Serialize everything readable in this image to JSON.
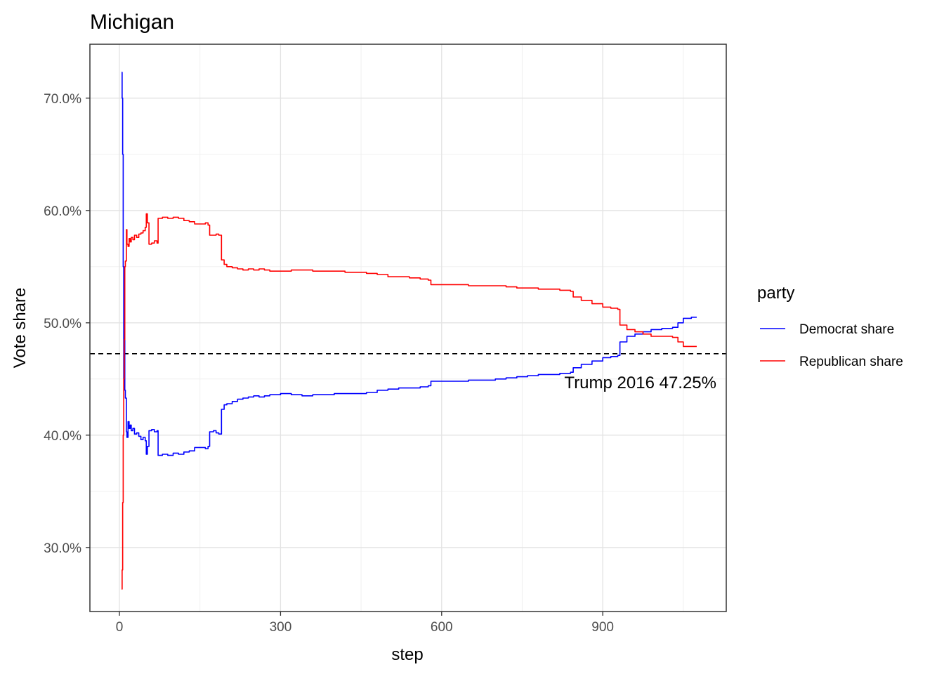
{
  "chart_data": {
    "type": "line",
    "title": "Michigan",
    "xlabel": "step",
    "ylabel": "Vote share",
    "xlim": [
      -55,
      1130
    ],
    "ylim": [
      24.3,
      74.8
    ],
    "x_ticks": [
      0,
      300,
      600,
      900
    ],
    "x_minor_ticks": [
      150,
      450,
      750,
      1050
    ],
    "y_ticks": [
      30,
      40,
      50,
      60,
      70
    ],
    "y_minor_ticks": [
      35,
      45,
      55,
      65
    ],
    "y_tick_format": "percent_1dp",
    "grid": true,
    "legend": {
      "title": "party",
      "position": "right"
    },
    "reference_line": {
      "y": 47.25,
      "label": "Trump 2016 47.25%",
      "style": "dashed",
      "color": "#000000"
    },
    "series": [
      {
        "name": "Democrat share",
        "color": "#0000ff",
        "points": [
          [
            4,
            72.3
          ],
          [
            5,
            70.0
          ],
          [
            6,
            65.0
          ],
          [
            7,
            55.0
          ],
          [
            8,
            45.0
          ],
          [
            9,
            49.2
          ],
          [
            10,
            44.0
          ],
          [
            11,
            43.3
          ],
          [
            13,
            40.3
          ],
          [
            14,
            39.8
          ],
          [
            16,
            41.2
          ],
          [
            18,
            40.6
          ],
          [
            20,
            40.9
          ],
          [
            22,
            40.4
          ],
          [
            25,
            40.6
          ],
          [
            28,
            40.1
          ],
          [
            32,
            40.2
          ],
          [
            36,
            39.9
          ],
          [
            40,
            39.6
          ],
          [
            44,
            39.8
          ],
          [
            48,
            39.5
          ],
          [
            50,
            38.3
          ],
          [
            52,
            39.0
          ],
          [
            55,
            40.4
          ],
          [
            60,
            40.5
          ],
          [
            65,
            40.3
          ],
          [
            70,
            40.4
          ],
          [
            72,
            38.2
          ],
          [
            80,
            38.3
          ],
          [
            90,
            38.2
          ],
          [
            100,
            38.4
          ],
          [
            110,
            38.3
          ],
          [
            120,
            38.5
          ],
          [
            130,
            38.6
          ],
          [
            140,
            38.9
          ],
          [
            150,
            38.9
          ],
          [
            160,
            38.8
          ],
          [
            165,
            39.0
          ],
          [
            168,
            40.3
          ],
          [
            175,
            40.4
          ],
          [
            180,
            40.2
          ],
          [
            185,
            40.1
          ],
          [
            190,
            42.3
          ],
          [
            195,
            42.7
          ],
          [
            200,
            42.8
          ],
          [
            210,
            43.0
          ],
          [
            220,
            43.2
          ],
          [
            230,
            43.3
          ],
          [
            240,
            43.4
          ],
          [
            250,
            43.5
          ],
          [
            260,
            43.4
          ],
          [
            270,
            43.5
          ],
          [
            280,
            43.6
          ],
          [
            300,
            43.7
          ],
          [
            320,
            43.6
          ],
          [
            340,
            43.5
          ],
          [
            360,
            43.6
          ],
          [
            380,
            43.6
          ],
          [
            400,
            43.7
          ],
          [
            420,
            43.7
          ],
          [
            440,
            43.7
          ],
          [
            460,
            43.8
          ],
          [
            480,
            44.0
          ],
          [
            500,
            44.1
          ],
          [
            520,
            44.2
          ],
          [
            540,
            44.2
          ],
          [
            560,
            44.3
          ],
          [
            575,
            44.4
          ],
          [
            580,
            44.8
          ],
          [
            600,
            44.8
          ],
          [
            630,
            44.8
          ],
          [
            650,
            44.9
          ],
          [
            680,
            44.9
          ],
          [
            700,
            45.0
          ],
          [
            720,
            45.1
          ],
          [
            740,
            45.2
          ],
          [
            760,
            45.3
          ],
          [
            780,
            45.4
          ],
          [
            800,
            45.4
          ],
          [
            820,
            45.5
          ],
          [
            840,
            45.6
          ],
          [
            845,
            46.0
          ],
          [
            860,
            46.3
          ],
          [
            880,
            46.6
          ],
          [
            900,
            46.9
          ],
          [
            915,
            47.0
          ],
          [
            928,
            47.1
          ],
          [
            932,
            48.3
          ],
          [
            945,
            48.8
          ],
          [
            960,
            49.0
          ],
          [
            975,
            49.2
          ],
          [
            990,
            49.4
          ],
          [
            1010,
            49.5
          ],
          [
            1030,
            49.6
          ],
          [
            1040,
            50.0
          ],
          [
            1050,
            50.4
          ],
          [
            1065,
            50.5
          ],
          [
            1075,
            50.5
          ]
        ]
      },
      {
        "name": "Republican share",
        "color": "#ff0000",
        "points": [
          [
            4,
            26.3
          ],
          [
            5,
            28.0
          ],
          [
            6,
            34.0
          ],
          [
            7,
            40.0
          ],
          [
            8,
            45.0
          ],
          [
            9,
            48.5
          ],
          [
            10,
            55.0
          ],
          [
            11,
            55.5
          ],
          [
            13,
            58.3
          ],
          [
            14,
            57.0
          ],
          [
            16,
            56.8
          ],
          [
            18,
            57.5
          ],
          [
            20,
            57.2
          ],
          [
            22,
            57.6
          ],
          [
            25,
            57.4
          ],
          [
            28,
            57.8
          ],
          [
            32,
            57.6
          ],
          [
            36,
            57.9
          ],
          [
            40,
            58.0
          ],
          [
            44,
            58.2
          ],
          [
            48,
            58.5
          ],
          [
            50,
            59.7
          ],
          [
            52,
            58.9
          ],
          [
            55,
            57.0
          ],
          [
            60,
            57.1
          ],
          [
            65,
            57.3
          ],
          [
            70,
            57.1
          ],
          [
            72,
            59.3
          ],
          [
            80,
            59.4
          ],
          [
            90,
            59.3
          ],
          [
            100,
            59.4
          ],
          [
            110,
            59.3
          ],
          [
            120,
            59.1
          ],
          [
            130,
            59.0
          ],
          [
            140,
            58.8
          ],
          [
            150,
            58.8
          ],
          [
            160,
            58.9
          ],
          [
            165,
            58.7
          ],
          [
            168,
            57.8
          ],
          [
            175,
            57.8
          ],
          [
            180,
            57.9
          ],
          [
            185,
            57.8
          ],
          [
            190,
            55.6
          ],
          [
            195,
            55.2
          ],
          [
            200,
            55.0
          ],
          [
            210,
            54.9
          ],
          [
            220,
            54.8
          ],
          [
            230,
            54.7
          ],
          [
            240,
            54.8
          ],
          [
            250,
            54.7
          ],
          [
            260,
            54.8
          ],
          [
            270,
            54.7
          ],
          [
            280,
            54.6
          ],
          [
            300,
            54.6
          ],
          [
            320,
            54.7
          ],
          [
            340,
            54.7
          ],
          [
            360,
            54.6
          ],
          [
            380,
            54.6
          ],
          [
            400,
            54.6
          ],
          [
            420,
            54.5
          ],
          [
            440,
            54.5
          ],
          [
            460,
            54.4
          ],
          [
            480,
            54.3
          ],
          [
            500,
            54.1
          ],
          [
            520,
            54.1
          ],
          [
            540,
            54.0
          ],
          [
            560,
            53.9
          ],
          [
            575,
            53.8
          ],
          [
            580,
            53.4
          ],
          [
            600,
            53.4
          ],
          [
            630,
            53.4
          ],
          [
            650,
            53.3
          ],
          [
            680,
            53.3
          ],
          [
            700,
            53.3
          ],
          [
            720,
            53.2
          ],
          [
            740,
            53.1
          ],
          [
            760,
            53.1
          ],
          [
            780,
            53.0
          ],
          [
            800,
            53.0
          ],
          [
            820,
            52.9
          ],
          [
            840,
            52.8
          ],
          [
            845,
            52.3
          ],
          [
            860,
            52.0
          ],
          [
            880,
            51.7
          ],
          [
            900,
            51.4
          ],
          [
            915,
            51.3
          ],
          [
            928,
            51.2
          ],
          [
            932,
            49.8
          ],
          [
            945,
            49.4
          ],
          [
            960,
            49.2
          ],
          [
            975,
            49.0
          ],
          [
            990,
            48.8
          ],
          [
            1010,
            48.8
          ],
          [
            1030,
            48.7
          ],
          [
            1040,
            48.3
          ],
          [
            1050,
            47.9
          ],
          [
            1065,
            47.9
          ],
          [
            1075,
            47.9
          ]
        ]
      }
    ]
  }
}
